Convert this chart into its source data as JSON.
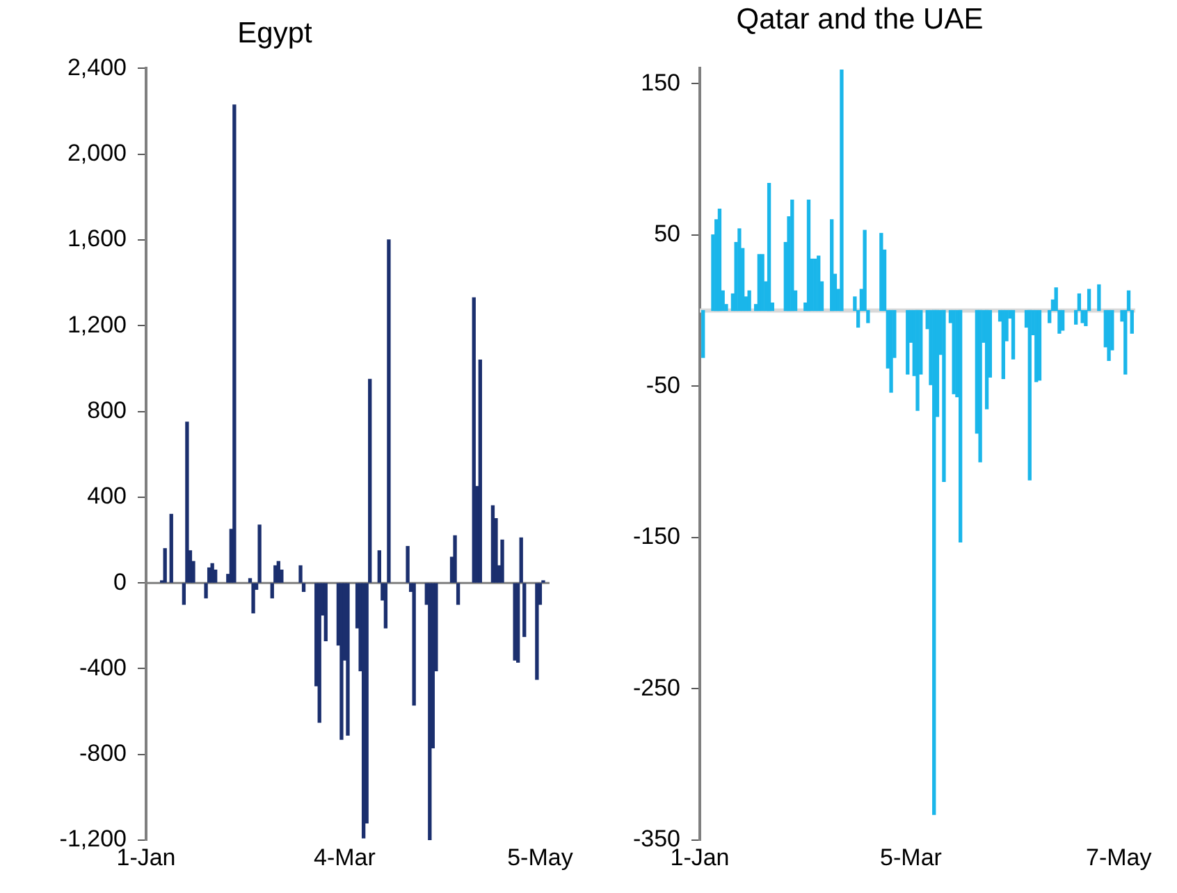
{
  "chart_data": [
    {
      "type": "bar",
      "title": "Egypt",
      "color": "#1b2f6e",
      "x": [
        "--01-06",
        "--01-07",
        "--01-09",
        "--01-13",
        "--01-14",
        "--01-15",
        "--01-16",
        "--01-20",
        "--01-21",
        "--01-22",
        "--01-23",
        "--01-27",
        "--01-28",
        "--01-29",
        "--02-03",
        "--02-04",
        "--02-05",
        "--02-06",
        "--02-10",
        "--02-11",
        "--02-12",
        "--02-13",
        "--02-19",
        "--02-20",
        "--02-24",
        "--02-25",
        "--02-26",
        "--02-27",
        "--03-02",
        "--03-03",
        "--03-04",
        "--03-05",
        "--03-08",
        "--03-09",
        "--03-10",
        "--03-11",
        "--03-12",
        "--03-15",
        "--03-16",
        "--03-17",
        "--03-18",
        "--03-24",
        "--03-25",
        "--03-26",
        "--03-30",
        "--03-31",
        "--04-01",
        "--04-02",
        "--04-07",
        "--04-08",
        "--04-09",
        "--04-14",
        "--04-15",
        "--04-16",
        "--04-20",
        "--04-21",
        "--04-22",
        "--04-23",
        "--04-27",
        "--04-28",
        "--04-29",
        "--04-30",
        "--05-04",
        "--05-05",
        "--05-06"
      ],
      "values": [
        10,
        160,
        320,
        -100,
        750,
        150,
        100,
        -70,
        70,
        90,
        60,
        40,
        250,
        2230,
        20,
        -140,
        -30,
        270,
        -70,
        80,
        100,
        60,
        80,
        -40,
        -480,
        -650,
        -150,
        -270,
        -290,
        -730,
        -360,
        -710,
        -210,
        -410,
        -1190,
        -1120,
        950,
        150,
        -80,
        -210,
        1600,
        170,
        -40,
        -570,
        -100,
        -1200,
        -770,
        -410,
        120,
        220,
        -100,
        1330,
        450,
        1040,
        360,
        300,
        80,
        200,
        -360,
        -370,
        210,
        -250,
        -450,
        -100,
        10
      ],
      "xlim": [
        "--01-01",
        "--05-08"
      ],
      "xticks": [
        {
          "value": "--01-01",
          "label": "1-Jan"
        },
        {
          "value": "--03-04",
          "label": "4-Mar"
        },
        {
          "value": "--05-05",
          "label": "5-May"
        }
      ],
      "ylim": [
        -1200,
        2400
      ],
      "yticks": [
        {
          "value": -1200,
          "label": "-1,200"
        },
        -800,
        -400,
        0,
        400,
        800,
        {
          "value": 1200,
          "label": "1,200"
        },
        {
          "value": 1600,
          "label": "1,600"
        },
        {
          "value": 2000,
          "label": "2,000"
        },
        {
          "value": 2400,
          "label": "2,400"
        }
      ]
    },
    {
      "type": "bar",
      "title": "Qatar and the UAE",
      "color": "#1ab6ea",
      "x": [
        "--01-02",
        "--01-05",
        "--01-06",
        "--01-07",
        "--01-08",
        "--01-09",
        "--01-11",
        "--01-12",
        "--01-13",
        "--01-14",
        "--01-15",
        "--01-16",
        "--01-18",
        "--01-19",
        "--01-20",
        "--01-21",
        "--01-22",
        "--01-23",
        "--01-27",
        "--01-28",
        "--01-29",
        "--01-30",
        "--02-02",
        "--02-03",
        "--02-04",
        "--02-05",
        "--02-06",
        "--02-07",
        "--02-10",
        "--02-11",
        "--02-12",
        "--02-13",
        "--02-17",
        "--02-18",
        "--02-19",
        "--02-20",
        "--02-21",
        "--02-25",
        "--02-26",
        "--02-27",
        "--02-28",
        "--02-29",
        "--03-04",
        "--03-05",
        "--03-06",
        "--03-07",
        "--03-08",
        "--03-10",
        "--03-11",
        "--03-12",
        "--03-13",
        "--03-14",
        "--03-15",
        "--03-17",
        "--03-18",
        "--03-19",
        "--03-20",
        "--03-25",
        "--03-26",
        "--03-27",
        "--03-28",
        "--03-29",
        "--04-01",
        "--04-02",
        "--04-03",
        "--04-04",
        "--04-05",
        "--04-09",
        "--04-10",
        "--04-11",
        "--04-12",
        "--04-13",
        "--04-16",
        "--04-17",
        "--04-18",
        "--04-19",
        "--04-20",
        "--04-24",
        "--04-25",
        "--04-26",
        "--04-27",
        "--04-28",
        "--05-01",
        "--05-03",
        "--05-04",
        "--05-05",
        "--05-08",
        "--05-09",
        "--05-10",
        "--05-11"
      ],
      "values": [
        -31,
        50,
        60,
        67,
        13,
        4,
        11,
        45,
        54,
        41,
        9,
        13,
        4,
        37,
        37,
        19,
        84,
        5,
        45,
        62,
        73,
        13,
        5,
        73,
        34,
        34,
        36,
        19,
        60,
        24,
        14,
        159,
        9,
        -11,
        14,
        53,
        -8,
        51,
        40,
        -38,
        -54,
        -31,
        -42,
        -21,
        -43,
        -66,
        -42,
        -12,
        -49,
        -333,
        -70,
        -29,
        -113,
        -8,
        -55,
        -57,
        -153,
        -81,
        -100,
        -21,
        -65,
        -44,
        -7,
        -45,
        -20,
        -5,
        -32,
        -11,
        -112,
        -16,
        -47,
        -46,
        -8,
        7,
        15,
        -15,
        -13,
        -9,
        11,
        -8,
        -10,
        14,
        17,
        -24,
        -33,
        -26,
        -7,
        -42,
        13,
        -15
      ],
      "xlim": [
        "--01-01",
        "--05-12"
      ],
      "xticks": [
        {
          "value": "--01-01",
          "label": "1-Jan"
        },
        {
          "value": "--03-05",
          "label": "5-Mar"
        },
        {
          "value": "--05-07",
          "label": "7-May"
        }
      ],
      "ylim": [
        -350,
        160
      ],
      "yticks": [
        -350,
        -250,
        -150,
        -50,
        50,
        150
      ]
    }
  ]
}
